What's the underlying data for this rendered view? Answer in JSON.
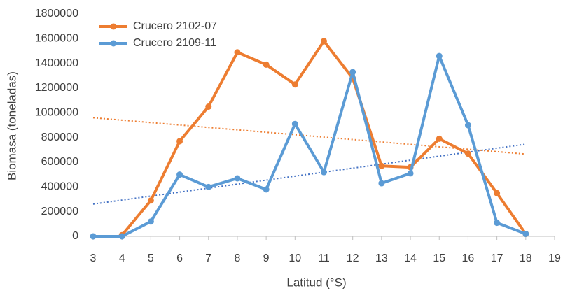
{
  "chart_data": {
    "type": "line",
    "x_label": "Latitud (°S)",
    "y_label": "Biomasa (toneladas)",
    "x": [
      3,
      4,
      5,
      6,
      7,
      8,
      9,
      10,
      11,
      12,
      13,
      14,
      15,
      16,
      17,
      18
    ],
    "series": [
      {
        "name": "Crucero 2102-07",
        "color": "#ed7d31",
        "values": [
          null,
          10000,
          290000,
          770000,
          1050000,
          1490000,
          1390000,
          1230000,
          1580000,
          1280000,
          570000,
          560000,
          790000,
          670000,
          350000,
          20000
        ]
      },
      {
        "name": "Crucero 2109-11",
        "color": "#5b9bd5",
        "values": [
          0,
          0,
          120000,
          500000,
          400000,
          470000,
          380000,
          910000,
          520000,
          1330000,
          430000,
          510000,
          1460000,
          900000,
          110000,
          20000
        ]
      }
    ],
    "xlim": [
      3,
      19
    ],
    "xticks": [
      3,
      4,
      5,
      6,
      7,
      8,
      9,
      10,
      11,
      12,
      13,
      14,
      15,
      16,
      17,
      18,
      19
    ],
    "ylim": [
      0,
      1800000
    ],
    "yticks": [
      0,
      200000,
      400000,
      600000,
      800000,
      1000000,
      1200000,
      1400000,
      1600000,
      1800000
    ],
    "trendline": true,
    "legend": "upper left"
  }
}
